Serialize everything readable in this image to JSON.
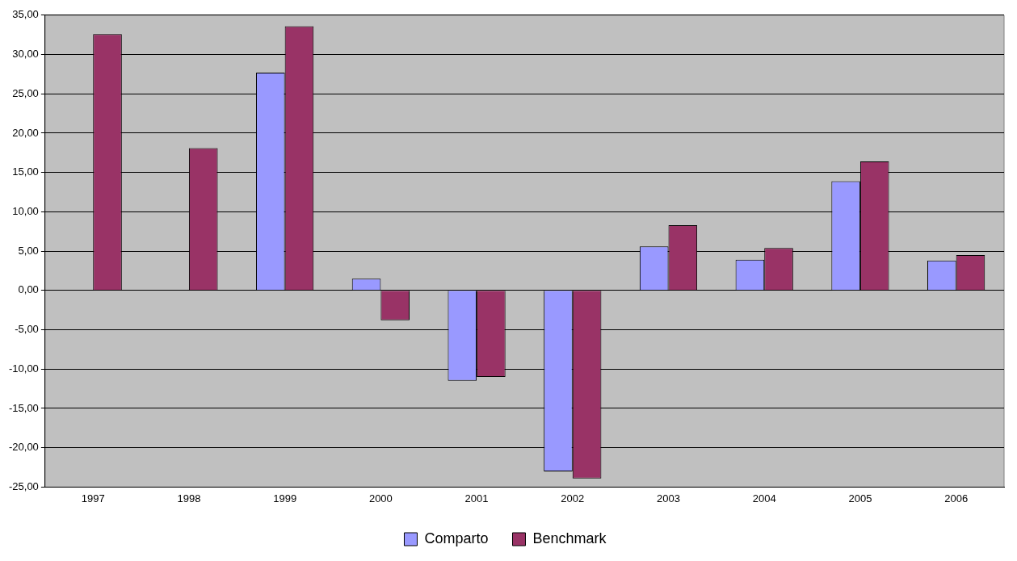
{
  "chart_data": {
    "type": "bar",
    "categories": [
      "1997",
      "1998",
      "1999",
      "2000",
      "2001",
      "2002",
      "2003",
      "2004",
      "2005",
      "2006"
    ],
    "series": [
      {
        "name": "Comparto",
        "color": "#9999ff",
        "values": [
          null,
          null,
          27.7,
          1.5,
          -11.5,
          -23.0,
          5.6,
          3.9,
          13.9,
          3.8
        ]
      },
      {
        "name": "Benchmark",
        "color": "#993366",
        "values": [
          32.6,
          18.1,
          33.6,
          -3.8,
          -11.0,
          -23.9,
          8.3,
          5.4,
          16.4,
          4.5
        ]
      }
    ],
    "ylim": [
      -25,
      35
    ],
    "yticks": [
      {
        "value": -25,
        "label": "-25,00"
      },
      {
        "value": -20,
        "label": "-20,00"
      },
      {
        "value": -15,
        "label": "-15,00"
      },
      {
        "value": -10,
        "label": "-10,00"
      },
      {
        "value": -5,
        "label": "-5,00"
      },
      {
        "value": 0,
        "label": "0,00"
      },
      {
        "value": 5,
        "label": "5,00"
      },
      {
        "value": 10,
        "label": "10,00"
      },
      {
        "value": 15,
        "label": "15,00"
      },
      {
        "value": 20,
        "label": "20,00"
      },
      {
        "value": 25,
        "label": "25,00"
      },
      {
        "value": 30,
        "label": "30,00"
      },
      {
        "value": 35,
        "label": "35,00"
      }
    ],
    "grid": "y",
    "legend": "bottom"
  }
}
